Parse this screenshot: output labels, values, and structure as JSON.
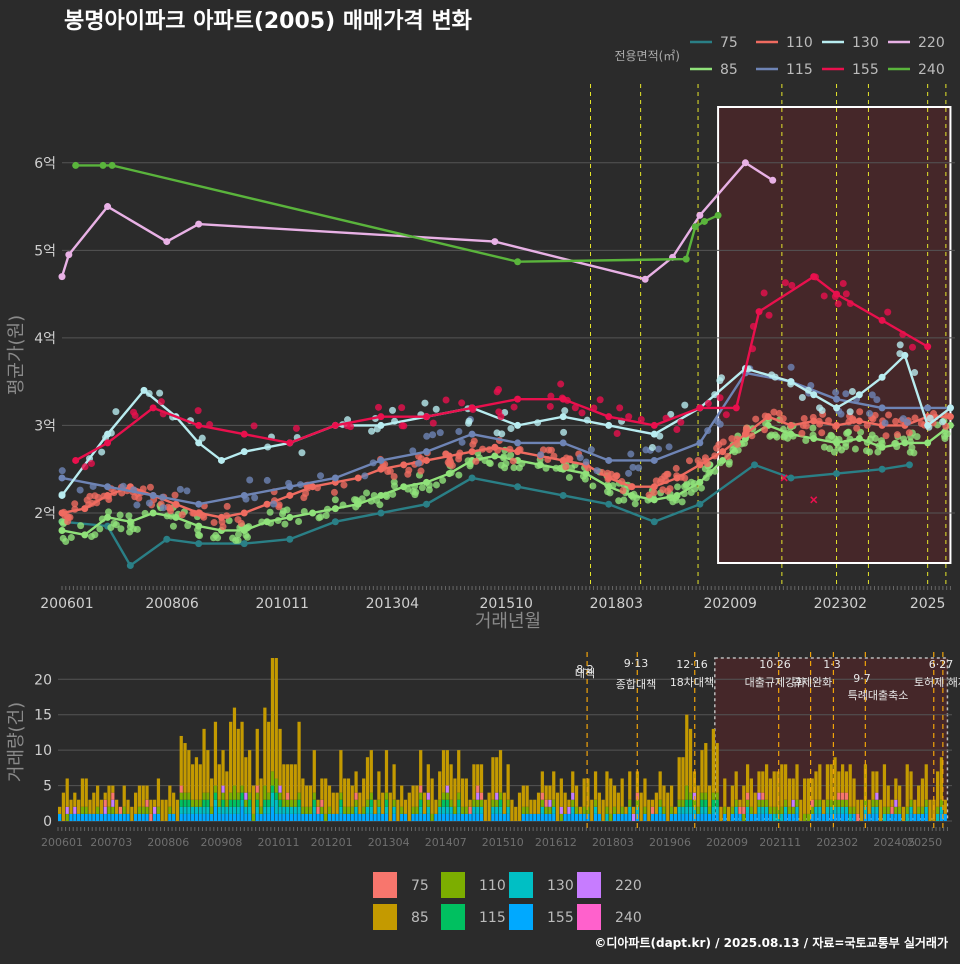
{
  "title": "봉명아이파크 아파트(2005) 매매가격 변화",
  "caption": "©디아파트(dapt.kr) / 2025.08.13 / 자료=국토교통부 실거래가",
  "legend_title": "전용면적(㎡)",
  "chart_data": [
    {
      "type": "line",
      "xlabel": "거래년월",
      "ylabel": "평균가(원)",
      "x_ticks": [
        "200601",
        "200806",
        "201011",
        "201304",
        "201510",
        "201803",
        "202009",
        "202302",
        "2025"
      ],
      "y_ticks": [
        {
          "value": 2,
          "label": "2억"
        },
        {
          "value": 3,
          "label": "3억"
        },
        {
          "value": 4,
          "label": "4억"
        },
        {
          "value": 5,
          "label": "5억"
        },
        {
          "value": 6,
          "label": "6억"
        }
      ],
      "xlim": [
        2006.0,
        2025.6
      ],
      "ylim": [
        1.2,
        6.9
      ],
      "grid": true,
      "legend": "top-right",
      "highlight_range": [
        2020.4,
        2025.5
      ],
      "policy_lines": [
        2017.6,
        2018.7,
        2019.96,
        2021.8,
        2023.0,
        2023.7,
        2025.0,
        2025.4
      ],
      "series": [
        {
          "name": "75",
          "color": "#2a7f86",
          "x": [
            2006.0,
            2007.0,
            2007.5,
            2008.3,
            2009.0,
            2010.0,
            2011.0,
            2012.0,
            2013.0,
            2014.0,
            2015.0,
            2016.0,
            2017.0,
            2018.0,
            2019.0,
            2020.0,
            2021.2,
            2022.0,
            2023.0,
            2024.0,
            2024.6
          ],
          "y": [
            1.9,
            1.85,
            1.4,
            1.7,
            1.65,
            1.65,
            1.7,
            1.9,
            2.0,
            2.1,
            2.4,
            2.3,
            2.2,
            2.1,
            1.9,
            2.1,
            2.55,
            2.4,
            2.45,
            2.5,
            2.55
          ]
        },
        {
          "name": "85",
          "color": "#90e27a",
          "x": [
            2006.0,
            2006.5,
            2007.0,
            2007.5,
            2008.0,
            2008.5,
            2009.0,
            2009.5,
            2010.0,
            2010.5,
            2011.0,
            2011.5,
            2012.0,
            2012.5,
            2013.0,
            2013.5,
            2014.0,
            2014.5,
            2015.0,
            2015.5,
            2016.0,
            2016.5,
            2017.0,
            2017.5,
            2018.0,
            2018.5,
            2019.0,
            2019.5,
            2020.0,
            2020.5,
            2021.0,
            2021.5,
            2022.0,
            2022.5,
            2023.0,
            2023.5,
            2024.0,
            2024.5,
            2025.0,
            2025.5
          ],
          "y": [
            1.8,
            1.75,
            1.95,
            1.9,
            2.0,
            1.95,
            1.85,
            1.8,
            1.8,
            1.9,
            1.95,
            2.0,
            2.05,
            2.1,
            2.2,
            2.3,
            2.35,
            2.45,
            2.6,
            2.65,
            2.6,
            2.55,
            2.5,
            2.45,
            2.3,
            2.2,
            2.15,
            2.2,
            2.35,
            2.6,
            2.85,
            3.0,
            2.9,
            2.85,
            2.8,
            2.85,
            2.75,
            2.8,
            2.8,
            3.0
          ]
        },
        {
          "name": "110",
          "color": "#ef6b60",
          "x": [
            2006.0,
            2006.5,
            2007.0,
            2007.5,
            2008.0,
            2008.5,
            2009.0,
            2009.5,
            2010.0,
            2010.5,
            2011.0,
            2011.5,
            2012.0,
            2012.5,
            2013.0,
            2013.5,
            2014.0,
            2014.5,
            2015.0,
            2015.5,
            2016.0,
            2016.5,
            2017.0,
            2017.5,
            2018.0,
            2018.5,
            2019.0,
            2019.5,
            2020.0,
            2020.5,
            2021.0,
            2021.5,
            2022.0,
            2022.5,
            2023.0,
            2023.5,
            2024.0,
            2024.5,
            2025.0,
            2025.5
          ],
          "y": [
            2.0,
            2.05,
            2.2,
            2.3,
            2.2,
            2.1,
            2.0,
            1.95,
            2.0,
            2.1,
            2.2,
            2.3,
            2.35,
            2.4,
            2.5,
            2.55,
            2.6,
            2.65,
            2.7,
            2.75,
            2.7,
            2.65,
            2.6,
            2.55,
            2.4,
            2.3,
            2.3,
            2.4,
            2.55,
            2.7,
            2.9,
            3.1,
            3.0,
            3.05,
            3.0,
            3.05,
            3.0,
            3.0,
            3.1,
            3.1
          ]
        },
        {
          "name": "115",
          "color": "#6e84b5",
          "x": [
            2006.0,
            2007.0,
            2008.0,
            2009.0,
            2010.0,
            2011.0,
            2012.0,
            2013.0,
            2014.0,
            2015.0,
            2016.0,
            2017.0,
            2018.0,
            2019.0,
            2020.0,
            2021.0,
            2022.0,
            2023.0,
            2024.0,
            2025.0,
            2025.5
          ],
          "y": [
            2.4,
            2.3,
            2.2,
            2.1,
            2.2,
            2.3,
            2.4,
            2.6,
            2.7,
            2.9,
            2.8,
            2.8,
            2.6,
            2.6,
            2.8,
            3.6,
            3.5,
            3.3,
            3.2,
            3.2,
            3.2
          ]
        },
        {
          "name": "130",
          "color": "#b8ecf0",
          "x": [
            2006.0,
            2007.0,
            2007.8,
            2008.5,
            2009.0,
            2009.5,
            2010.0,
            2011.0,
            2012.0,
            2013.0,
            2014.0,
            2015.0,
            2016.0,
            2017.0,
            2018.0,
            2019.0,
            2020.0,
            2021.0,
            2022.0,
            2022.5,
            2023.0,
            2023.5,
            2024.0,
            2024.5,
            2025.0,
            2025.5
          ],
          "y": [
            2.2,
            2.9,
            3.4,
            3.1,
            2.8,
            2.6,
            2.7,
            2.8,
            3.0,
            3.0,
            3.1,
            3.2,
            3.0,
            3.1,
            3.0,
            2.9,
            3.2,
            3.65,
            3.5,
            3.35,
            3.2,
            3.35,
            3.55,
            3.8,
            3.0,
            3.2
          ]
        },
        {
          "name": "155",
          "color": "#e9104d",
          "x": [
            2006.3,
            2007.0,
            2008.0,
            2009.0,
            2010.0,
            2011.0,
            2012.0,
            2013.0,
            2014.0,
            2015.0,
            2016.0,
            2017.0,
            2018.0,
            2019.0,
            2020.0,
            2020.8,
            2021.3,
            2022.5,
            2023.0,
            2024.0,
            2025.0
          ],
          "y": [
            2.6,
            2.8,
            3.2,
            3.0,
            2.9,
            2.8,
            3.0,
            3.1,
            3.1,
            3.2,
            3.3,
            3.3,
            3.1,
            3.0,
            3.2,
            3.2,
            4.3,
            4.7,
            4.5,
            4.2,
            3.9
          ]
        },
        {
          "name": "220",
          "color": "#e8b1e5",
          "x": [
            2006.0,
            2006.15,
            2007.0,
            2008.3,
            2009.0,
            2015.5,
            2018.8,
            2019.4,
            2020.0,
            2021.0,
            2021.6
          ],
          "y": [
            4.7,
            4.95,
            5.5,
            5.1,
            5.3,
            5.1,
            4.67,
            4.92,
            5.4,
            6.0,
            5.8
          ]
        },
        {
          "name": "240",
          "color": "#5ab43c",
          "x": [
            2006.3,
            2006.9,
            2007.1,
            2016.0,
            2019.7,
            2019.9,
            2020.1,
            2020.4
          ],
          "y": [
            5.97,
            5.97,
            5.97,
            4.87,
            4.9,
            5.27,
            5.33,
            5.4
          ]
        }
      ],
      "markers": [
        {
          "x": 2021.85,
          "y": 2.4,
          "color": "#e9104d"
        },
        {
          "x": 2022.5,
          "y": 2.15,
          "color": "#e9104d"
        }
      ]
    },
    {
      "type": "bar",
      "stacked": true,
      "xlabel": "",
      "ylabel": "거래량(건)",
      "x_ticks": [
        "200601",
        "200703",
        "200806",
        "200908",
        "201011",
        "201201",
        "201304",
        "201407",
        "201510",
        "201612",
        "201803",
        "201906",
        "202009",
        "202111",
        "202302",
        "202405",
        "20250"
      ],
      "y_ticks": [
        0,
        5,
        10,
        15,
        20
      ],
      "ylim": [
        0,
        23
      ],
      "highlight_range": [
        2020.4,
        2025.5
      ],
      "policy_lines": [
        2017.6,
        2018.7,
        2019.96,
        2021.8,
        2022.5,
        2023.0,
        2023.7,
        2025.2,
        2025.4
      ],
      "policy_labels": [
        {
          "date": "8·2",
          "text": "대책",
          "x": 2017.6
        },
        {
          "date": "9·13",
          "text": "종합대책",
          "x": 2018.7
        },
        {
          "date": "12·16",
          "text": "18차대책",
          "x": 2019.96
        },
        {
          "date": "10·26",
          "text": "대출규제강화",
          "x": 2021.8
        },
        {
          "date": "1·3",
          "text": "규제완화",
          "x": 2023.0
        },
        {
          "date": "9·7",
          "text": "특례대출축소",
          "x": 2023.7
        },
        {
          "date": "",
          "text": "토허제 해제",
          "x": 2025.0
        },
        {
          "date": "6·27",
          "text": "대출규",
          "x": 2025.4
        }
      ],
      "series_colors": {
        "75": "#f8766d",
        "85": "#c49a00",
        "110": "#7cae00",
        "115": "#00c060",
        "130": "#00bfc4",
        "155": "#00a9ff",
        "220": "#c77cff",
        "240": "#ff61cc"
      }
    }
  ],
  "legend": [
    {
      "name": "75",
      "line_color": "#2a7f86",
      "bar_color": "#f8766d"
    },
    {
      "name": "85",
      "line_color": "#90e27a",
      "bar_color": "#c49a00"
    },
    {
      "name": "110",
      "line_color": "#ef6b60",
      "bar_color": "#7cae00"
    },
    {
      "name": "115",
      "line_color": "#6e84b5",
      "bar_color": "#00c060"
    },
    {
      "name": "130",
      "line_color": "#b8ecf0",
      "bar_color": "#00bfc4"
    },
    {
      "name": "155",
      "line_color": "#e9104d",
      "bar_color": "#00a9ff"
    },
    {
      "name": "220",
      "line_color": "#e8b1e5",
      "bar_color": "#c77cff"
    },
    {
      "name": "240",
      "line_color": "#5ab43c",
      "bar_color": "#ff61cc"
    }
  ]
}
